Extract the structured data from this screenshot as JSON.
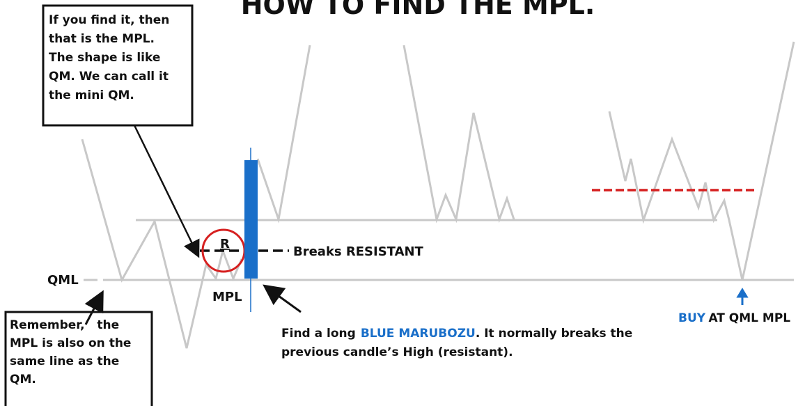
{
  "title": "HOW TO FIND THE MPL.",
  "callouts": [
    {
      "lines": [
        "If you find it, then",
        "that is the MPL.",
        "The shape is like",
        "QM. We can call it",
        "the mini QM."
      ]
    },
    {
      "lines": [
        "Remember,   the",
        "MPL is also on the",
        "same line as the",
        "QM."
      ]
    }
  ],
  "labels": {
    "resistance": "R",
    "breaks": "Breaks RESISTANT",
    "qml": "QML",
    "mpl": "MPL"
  },
  "note": {
    "lead": "Find a long",
    "highlight": "BLUE MARUBOZU",
    "tail": ". It normally breaks the",
    "line2": "previous candle’s High (resistant)."
  },
  "buy": {
    "highlight": "BUY",
    "tail": "AT QML MPL"
  }
}
